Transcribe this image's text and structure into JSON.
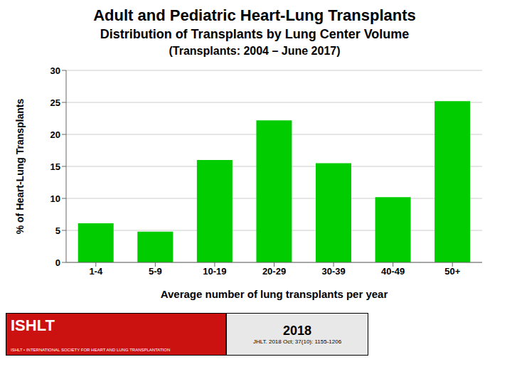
{
  "chart_data": {
    "type": "bar",
    "title": "Adult and Pediatric Heart-Lung Transplants",
    "subtitle": [
      "Distribution of Transplants by Lung Center Volume",
      "(Transplants: 2004 – June 2017)"
    ],
    "categories": [
      "1-4",
      "5-9",
      "10-19",
      "20-29",
      "30-39",
      "40-49",
      "50+"
    ],
    "values": [
      6.1,
      4.8,
      16.0,
      22.2,
      15.5,
      10.2,
      25.2
    ],
    "color": "#00CC00",
    "xlabel": "Average number of lung transplants per year",
    "ylabel": "% of Heart-Lung Transplants",
    "ylim": [
      0,
      30
    ],
    "yticks": [
      0,
      5,
      10,
      15,
      20,
      25,
      30
    ],
    "grid": true,
    "annotations": [
      "ISHLT",
      "ISHLT • INTERNATIONAL SOCIETY FOR HEART AND LUNG TRANSPLANTATION",
      "2018",
      "JHLT. 2018 Oct; 37(10): 1155-1206"
    ]
  }
}
